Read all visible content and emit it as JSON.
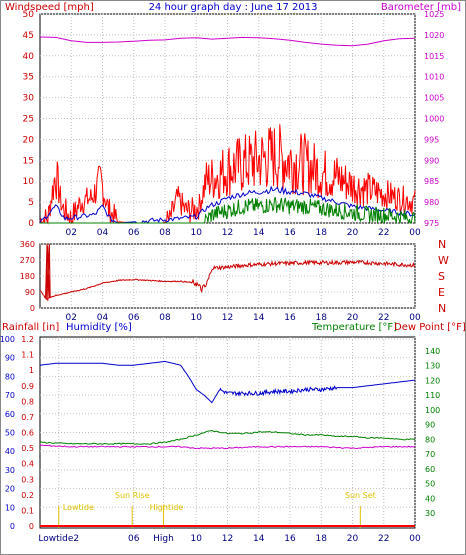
{
  "chart_data": [
    {
      "type": "line",
      "title": "24 hour graph day : June 17 2013",
      "left_axis": {
        "label": "Windspeed [mph]",
        "range": [
          0,
          50
        ],
        "ticks": [
          0,
          5,
          10,
          15,
          20,
          25,
          30,
          35,
          40,
          45,
          50
        ],
        "color": "#cc0000"
      },
      "right_axis": {
        "label": "Barometer [mb]",
        "range": [
          975,
          1025
        ],
        "ticks": [
          975,
          980,
          985,
          990,
          995,
          1000,
          1005,
          1010,
          1015,
          1020,
          1025
        ],
        "color": "#cc00cc"
      },
      "x_ticks": [
        "02",
        "04",
        "06",
        "08",
        "10",
        "12",
        "14",
        "16",
        "18",
        "20",
        "22",
        "00"
      ],
      "grid": true,
      "series": [
        {
          "id": "barometer",
          "color": "#cc00cc",
          "axis": "right",
          "points": [
            [
              0,
              1019.5
            ],
            [
              1,
              1019.4
            ],
            [
              2,
              1018.6
            ],
            [
              3,
              1018.2
            ],
            [
              4,
              1018.2
            ],
            [
              5,
              1018.3
            ],
            [
              6,
              1018.5
            ],
            [
              7,
              1018.7
            ],
            [
              8,
              1018.8
            ],
            [
              9,
              1019.2
            ],
            [
              10,
              1019.3
            ],
            [
              11,
              1019.0
            ],
            [
              12,
              1019.2
            ],
            [
              13,
              1019.4
            ],
            [
              14,
              1019.3
            ],
            [
              15,
              1019.1
            ],
            [
              16,
              1018.7
            ],
            [
              17,
              1018.2
            ],
            [
              18,
              1017.8
            ],
            [
              19,
              1017.5
            ],
            [
              20,
              1017.4
            ],
            [
              21,
              1017.8
            ],
            [
              22,
              1018.6
            ],
            [
              23,
              1019.1
            ],
            [
              24,
              1019.2
            ]
          ]
        },
        {
          "id": "wind_gust",
          "color": "#ff0000",
          "axis": "left",
          "points": [
            [
              0,
              0.5
            ],
            [
              0.5,
              1
            ],
            [
              1.0,
              12
            ],
            [
              1.4,
              4
            ],
            [
              2.0,
              1
            ],
            [
              2.6,
              5
            ],
            [
              3.3,
              6
            ],
            [
              3.9,
              10
            ],
            [
              4.4,
              3
            ],
            [
              5.0,
              0.3
            ],
            [
              6.0,
              0
            ],
            [
              7.8,
              0
            ],
            [
              8.3,
              0.5
            ],
            [
              8.8,
              6
            ],
            [
              9.3,
              3
            ],
            [
              9.8,
              3
            ],
            [
              10.2,
              4
            ],
            [
              10.6,
              10
            ],
            [
              11.2,
              11
            ],
            [
              12,
              13
            ],
            [
              13,
              14
            ],
            [
              14,
              15
            ],
            [
              15,
              16
            ],
            [
              16,
              15
            ],
            [
              17,
              14
            ],
            [
              18,
              12
            ],
            [
              19,
              11
            ],
            [
              20,
              9
            ],
            [
              21,
              8
            ],
            [
              22,
              7
            ],
            [
              23,
              6
            ],
            [
              24,
              5
            ]
          ]
        },
        {
          "id": "wind_avg",
          "color": "#0000cc",
          "axis": "left",
          "points": [
            [
              0,
              0
            ],
            [
              1.0,
              4
            ],
            [
              1.6,
              1
            ],
            [
              3.5,
              2
            ],
            [
              4.0,
              4
            ],
            [
              4.5,
              1
            ],
            [
              5.0,
              0
            ],
            [
              8.8,
              1
            ],
            [
              10.0,
              1.5
            ],
            [
              10.8,
              4
            ],
            [
              11.5,
              5
            ],
            [
              12,
              6
            ],
            [
              13,
              7
            ],
            [
              14,
              7.5
            ],
            [
              15,
              8
            ],
            [
              16,
              7.5
            ],
            [
              17,
              7
            ],
            [
              18,
              6
            ],
            [
              19,
              5
            ],
            [
              20,
              4
            ],
            [
              21,
              3.5
            ],
            [
              22,
              3
            ],
            [
              23,
              2.5
            ],
            [
              24,
              2
            ]
          ]
        },
        {
          "id": "wind_speed",
          "color": "#008000",
          "axis": "left",
          "points": [
            [
              0,
              0
            ],
            [
              10.5,
              0
            ],
            [
              11,
              2
            ],
            [
              12,
              3
            ],
            [
              13,
              4
            ],
            [
              14,
              4
            ],
            [
              15,
              4.5
            ],
            [
              16,
              4
            ],
            [
              17,
              4
            ],
            [
              18,
              3.5
            ],
            [
              19,
              3
            ],
            [
              20,
              2.5
            ],
            [
              21,
              2
            ],
            [
              22,
              2
            ],
            [
              23,
              1.5
            ],
            [
              24,
              1
            ]
          ]
        }
      ]
    },
    {
      "type": "line",
      "left_axis": {
        "label": "",
        "range": [
          0,
          360
        ],
        "ticks": [
          0,
          90,
          180,
          270,
          360
        ]
      },
      "right_axis": {
        "label": "",
        "ticks": [
          "N",
          "W",
          "S",
          "E",
          "N"
        ],
        "color": "#cc0000"
      },
      "x_ticks": [
        "02",
        "04",
        "06",
        "08",
        "10",
        "12",
        "14",
        "16",
        "18",
        "20",
        "22",
        "00"
      ],
      "grid": true,
      "series": [
        {
          "id": "wind_direction",
          "color": "#cc0000",
          "points": [
            [
              0,
              100
            ],
            [
              0.4,
              50
            ],
            [
              0.5,
              350
            ],
            [
              0.6,
              60
            ],
            [
              1,
              70
            ],
            [
              2,
              90
            ],
            [
              3,
              110
            ],
            [
              4,
              140
            ],
            [
              5,
              155
            ],
            [
              6,
              160
            ],
            [
              7,
              155
            ],
            [
              8,
              150
            ],
            [
              9,
              150
            ],
            [
              10,
              140
            ],
            [
              10.3,
              105
            ],
            [
              10.6,
              120
            ],
            [
              10.9,
              190
            ],
            [
              11,
              225
            ],
            [
              12,
              230
            ],
            [
              13,
              240
            ],
            [
              14,
              245
            ],
            [
              15,
              250
            ],
            [
              16,
              252
            ],
            [
              17,
              255
            ],
            [
              18,
              255
            ],
            [
              19,
              255
            ],
            [
              20,
              258
            ],
            [
              21,
              255
            ],
            [
              22,
              250
            ],
            [
              23,
              245
            ],
            [
              24,
              240
            ]
          ]
        }
      ]
    },
    {
      "type": "line",
      "labels": {
        "rainfall": "Rainfall [in]",
        "humidity": "Humidity [%]",
        "temperature": "Temperature [°F]",
        "dewpoint": "Dew Point [°F]"
      },
      "humidity_ticks": [
        0,
        10,
        20,
        30,
        40,
        50,
        60,
        70,
        80,
        90,
        100
      ],
      "rain_ticks": [
        "0",
        "0.1",
        "0.2",
        "0.3",
        "0.4",
        "0.5",
        "0.6",
        "0.7",
        "0.8",
        "0.9",
        "1",
        "1.1",
        "1.2"
      ],
      "temp_ticks": [
        30,
        40,
        50,
        60,
        70,
        80,
        90,
        100,
        110,
        120,
        130,
        140
      ],
      "x_ticks": [
        "Lowtide2",
        "06",
        "High",
        "10",
        "12",
        "14",
        "16",
        "18",
        "20",
        "22",
        "00"
      ],
      "x_tick_positions": [
        1.2,
        6,
        7.9,
        10,
        12,
        14,
        16,
        18,
        20,
        22,
        24
      ],
      "grid": true,
      "annotations": [
        {
          "text": "Lowtide",
          "x": 1.2
        },
        {
          "text": "Sun Rise",
          "x": 5.9
        },
        {
          "text": "Hightide",
          "x": 7.9
        },
        {
          "text": "Sun Set",
          "x": 20.5
        }
      ],
      "series": [
        {
          "id": "humidity",
          "color": "#0000cc",
          "axis": "humidity",
          "points": [
            [
              0,
              86
            ],
            [
              1,
              87
            ],
            [
              2,
              87
            ],
            [
              3,
              87
            ],
            [
              4,
              87
            ],
            [
              5,
              86
            ],
            [
              6,
              86
            ],
            [
              7,
              87
            ],
            [
              8,
              88
            ],
            [
              9,
              86
            ],
            [
              9.5,
              80
            ],
            [
              10,
              73
            ],
            [
              10.5,
              70
            ],
            [
              11,
              66
            ],
            [
              11.5,
              73
            ],
            [
              12,
              71
            ],
            [
              13,
              71
            ],
            [
              14,
              71
            ],
            [
              15,
              72
            ],
            [
              16,
              72
            ],
            [
              17,
              73
            ],
            [
              18,
              73
            ],
            [
              19,
              74
            ],
            [
              20,
              74
            ],
            [
              21,
              75
            ],
            [
              22,
              76
            ],
            [
              23,
              77
            ],
            [
              24,
              78
            ]
          ]
        },
        {
          "id": "temperature",
          "color": "#008000",
          "axis": "temp",
          "points": [
            [
              0,
              78
            ],
            [
              2,
              77
            ],
            [
              4,
              77
            ],
            [
              6,
              77
            ],
            [
              7,
              77
            ],
            [
              8,
              78
            ],
            [
              9,
              80
            ],
            [
              10,
              83
            ],
            [
              11,
              86
            ],
            [
              11.5,
              85
            ],
            [
              12,
              84
            ],
            [
              13,
              84
            ],
            [
              14,
              85
            ],
            [
              15,
              85
            ],
            [
              16,
              84
            ],
            [
              17,
              83
            ],
            [
              18,
              83
            ],
            [
              19,
              82
            ],
            [
              20,
              82
            ],
            [
              21,
              81
            ],
            [
              22,
              81
            ],
            [
              23,
              80
            ],
            [
              24,
              80
            ]
          ]
        },
        {
          "id": "dewpoint",
          "color": "#cc00cc",
          "axis": "temp",
          "points": [
            [
              0,
              76
            ],
            [
              2,
              75
            ],
            [
              4,
              75
            ],
            [
              6,
              75
            ],
            [
              8,
              75
            ],
            [
              9,
              75
            ],
            [
              10,
              74
            ],
            [
              11,
              74
            ],
            [
              12,
              74
            ],
            [
              14,
              75
            ],
            [
              16,
              75
            ],
            [
              18,
              75
            ],
            [
              20,
              74
            ],
            [
              22,
              75
            ],
            [
              24,
              75
            ]
          ]
        },
        {
          "id": "rainfall",
          "color": "#ff0000",
          "axis": "rain",
          "points": [
            [
              0,
              0
            ],
            [
              24,
              0
            ]
          ]
        }
      ]
    }
  ]
}
